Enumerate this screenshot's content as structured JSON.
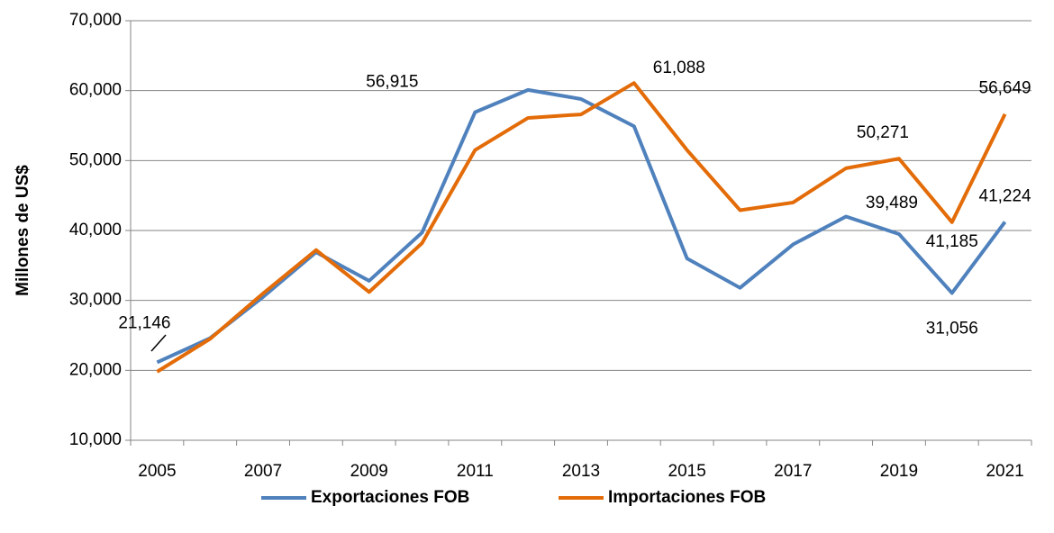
{
  "chart_data": {
    "type": "line",
    "y_label": "Millones de US$",
    "categories": [
      "2005",
      null,
      "2007",
      null,
      "2009",
      null,
      "2011",
      null,
      "2013",
      null,
      "2015",
      null,
      "2017",
      null,
      "2019",
      null,
      "2021"
    ],
    "ylim": [
      10000,
      70000
    ],
    "yticks": [
      {
        "value": 10000,
        "label": "10,000"
      },
      {
        "value": 20000,
        "label": "20,000"
      },
      {
        "value": 30000,
        "label": "30,000"
      },
      {
        "value": 40000,
        "label": "40,000"
      },
      {
        "value": 50000,
        "label": "50,000"
      },
      {
        "value": 60000,
        "label": "60,000"
      },
      {
        "value": 70000,
        "label": "70,000"
      }
    ],
    "grid": true,
    "legend": "bottom",
    "series": [
      {
        "name": "Exportaciones FOB",
        "color": "#4f81bd",
        "values": [
          21146,
          24600,
          30500,
          36900,
          32800,
          39700,
          56915,
          60100,
          58800,
          54900,
          36000,
          31800,
          38000,
          42000,
          39489,
          31056,
          41224
        ],
        "value_labels": [
          "21,146",
          null,
          null,
          null,
          null,
          null,
          "56,915",
          null,
          null,
          null,
          null,
          null,
          null,
          null,
          "39,489",
          "31,056",
          "41,224"
        ]
      },
      {
        "name": "Importaciones FOB",
        "color": "#e36c09",
        "values": [
          19800,
          24500,
          31000,
          37200,
          31200,
          38200,
          51500,
          56100,
          56600,
          61088,
          51500,
          42900,
          44000,
          48900,
          50271,
          41185,
          56649
        ],
        "value_labels": [
          null,
          null,
          null,
          null,
          null,
          null,
          null,
          null,
          null,
          "61,088",
          null,
          null,
          null,
          null,
          "50,271",
          "41,185",
          "56,649"
        ]
      }
    ]
  }
}
